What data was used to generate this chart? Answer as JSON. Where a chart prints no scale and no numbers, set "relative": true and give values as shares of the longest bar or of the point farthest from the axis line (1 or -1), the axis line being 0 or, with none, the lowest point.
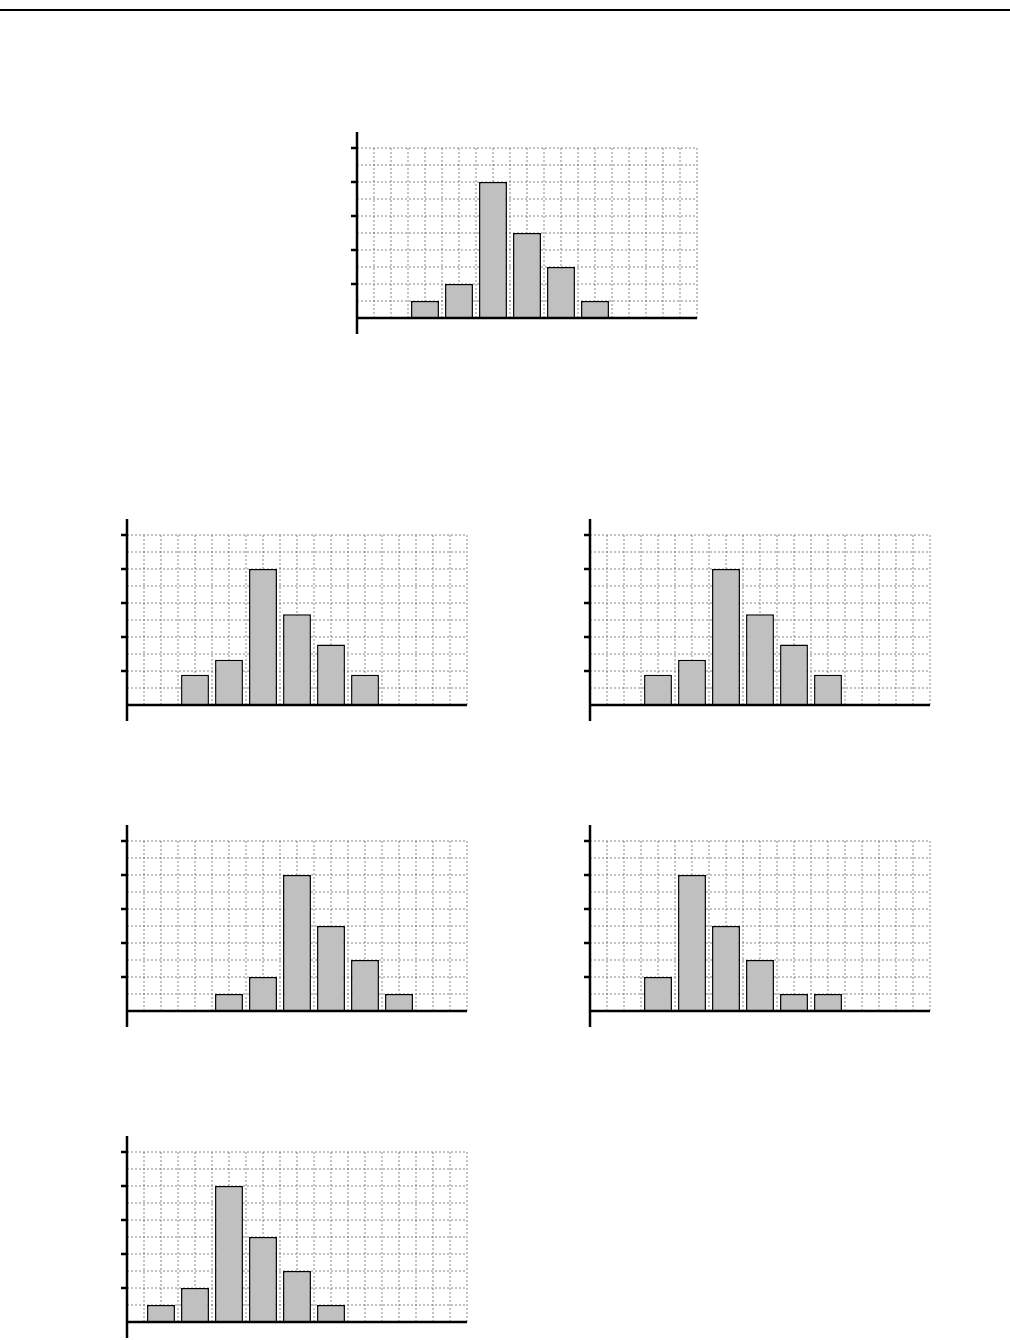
{
  "chart_data": [
    {
      "type": "bar",
      "categories": [
        null,
        null,
        null,
        null,
        null,
        null
      ],
      "values": [
        0.125,
        0.25,
        1,
        0.625,
        0.375,
        0.125
      ],
      "color": "#c0c0c0",
      "relative": true,
      "grid": true
    },
    {
      "type": "bar",
      "categories": [
        null,
        null,
        null,
        null,
        null,
        null
      ],
      "values": [
        0.222,
        0.333,
        1,
        0.667,
        0.444,
        0.222
      ],
      "color": "#c0c0c0",
      "relative": true,
      "grid": true
    },
    {
      "type": "bar",
      "categories": [
        null,
        null,
        null,
        null,
        null,
        null
      ],
      "values": [
        0.222,
        0.333,
        1,
        0.667,
        0.444,
        0.222
      ],
      "color": "#c0c0c0",
      "relative": true,
      "grid": true
    },
    {
      "type": "bar",
      "categories": [
        null,
        null,
        null,
        null,
        null,
        null
      ],
      "values": [
        0.125,
        0.25,
        1,
        0.625,
        0.375,
        0.125
      ],
      "color": "#c0c0c0",
      "relative": true,
      "grid": true
    },
    {
      "type": "bar",
      "categories": [
        null,
        null,
        null,
        null,
        null,
        null
      ],
      "values": [
        0.25,
        1,
        0.625,
        0.375,
        0.125,
        0.125
      ],
      "color": "#c0c0c0",
      "relative": true,
      "grid": true
    },
    {
      "type": "bar",
      "categories": [
        null,
        null,
        null,
        null,
        null,
        null
      ],
      "values": [
        0.125,
        0.25,
        1,
        0.625,
        0.375,
        0.125
      ],
      "color": "#c0c0c0",
      "relative": true,
      "grid": true
    }
  ]
}
